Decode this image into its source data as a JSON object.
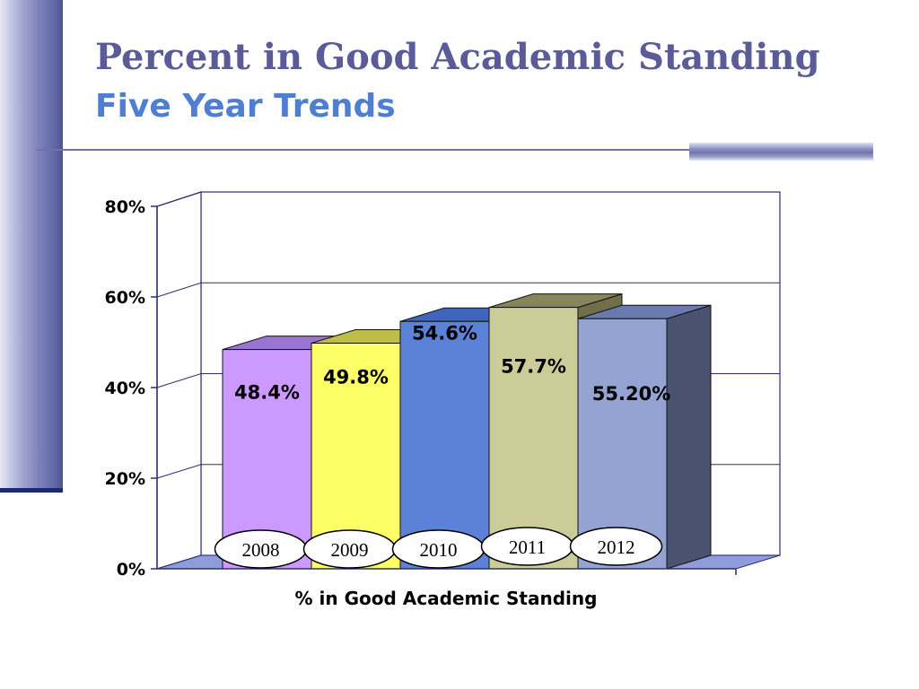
{
  "slide": {
    "title": "Percent in Good Academic Standing",
    "subtitle": "Five Year Trends"
  },
  "colors": {
    "bars": [
      "#cc99ff",
      "#ffff66",
      "#5b82d6",
      "#cccc99",
      "#94a3d1"
    ],
    "bar_tops": [
      "#9a74d2",
      "#bdbd48",
      "#3f66b8",
      "#86865e",
      "#6a79b0"
    ],
    "bar_sides": [
      "#7c5aa6",
      "#a8a83c",
      "#33579e",
      "#6f6f4c",
      "#4a5270"
    ],
    "floor": "#8e9cd9"
  },
  "chart_data": {
    "type": "bar",
    "title": "",
    "xlabel": "% in Good Academic Standing",
    "ylabel": "",
    "categories": [
      "2008",
      "2009",
      "2010",
      "2011",
      "2012"
    ],
    "values": [
      48.4,
      49.8,
      54.6,
      57.7,
      55.2
    ],
    "data_labels": [
      "48.4%",
      "49.8%",
      "54.6%",
      "57.7%",
      "55.20%"
    ],
    "ylim": [
      0,
      80
    ],
    "yticks": [
      "0%",
      "20%",
      "40%",
      "60%",
      "80%"
    ],
    "grid": true,
    "legend": "none",
    "style": "3d"
  }
}
